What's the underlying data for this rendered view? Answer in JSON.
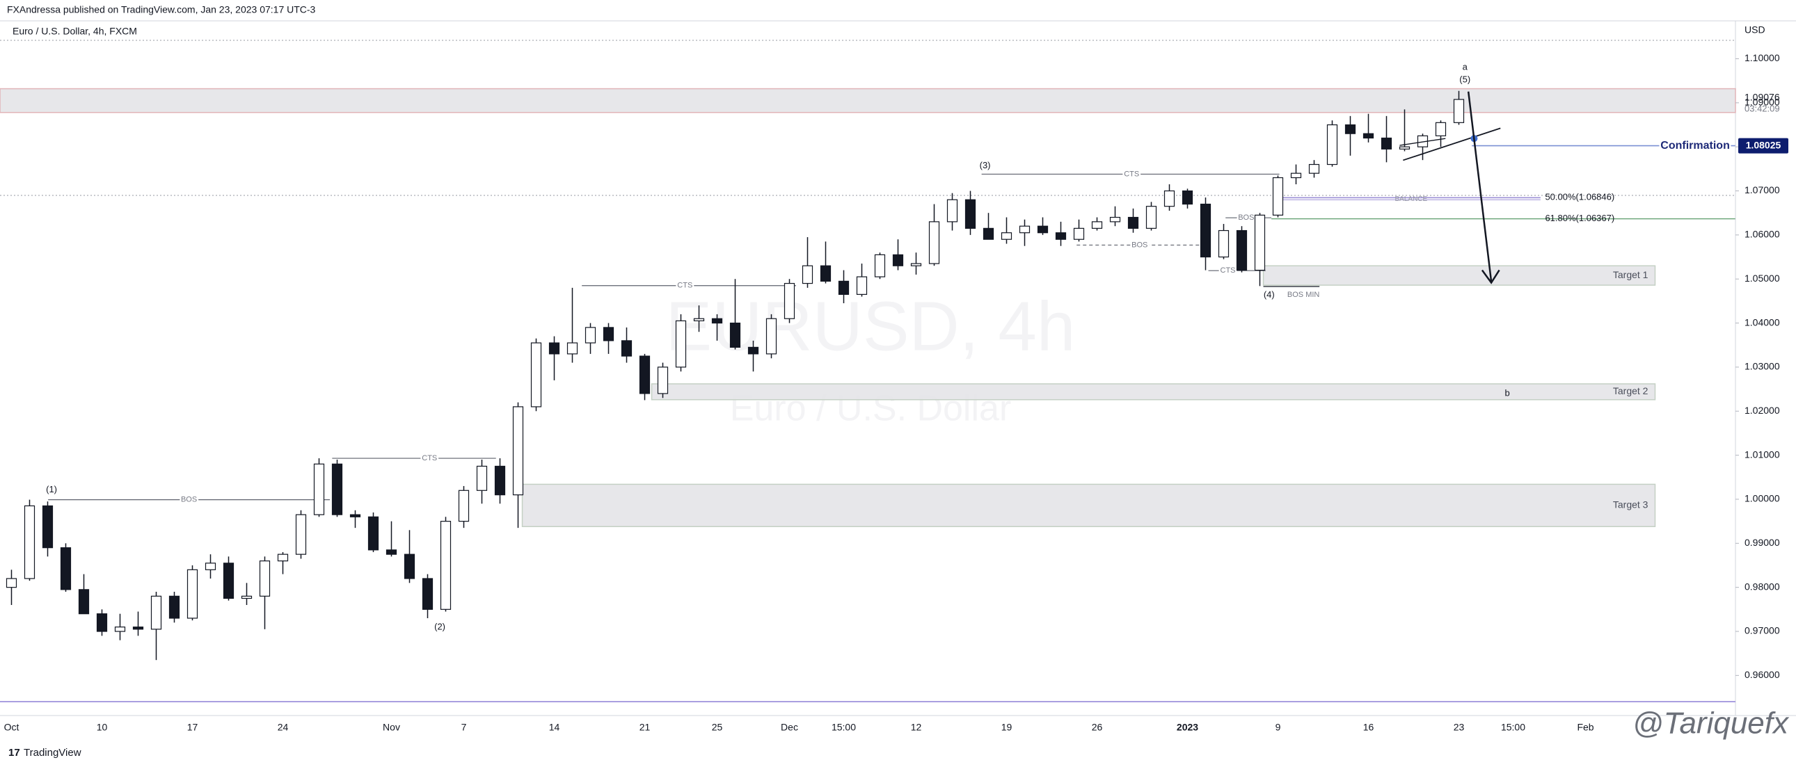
{
  "header": "FXAndressa published on TradingView.com, Jan 23, 2023 07:17 UTC-3",
  "footer": "TradingView",
  "signature": "@Tariquefx",
  "chart_data": {
    "type": "candlestick",
    "title": "Euro / U.S. Dollar, 4h, FXCM",
    "watermark": "EURUSD, 4h",
    "watermark_subtitle": "Euro / U.S. Dollar",
    "y_unit": "USD",
    "up_color": "#ffffff",
    "down_color": "#131722",
    "wick_color": "#131722",
    "categories": [
      "Oct",
      null,
      null,
      null,
      null,
      "10",
      null,
      null,
      null,
      null,
      "17",
      null,
      null,
      null,
      null,
      "24",
      null,
      null,
      null,
      null,
      null,
      "Nov",
      null,
      null,
      null,
      "7",
      null,
      null,
      null,
      null,
      "14",
      null,
      null,
      null,
      null,
      "21",
      null,
      null,
      null,
      "25",
      null,
      null,
      null,
      "Dec",
      null,
      null,
      "15:00",
      null,
      null,
      null,
      "12",
      null,
      null,
      null,
      null,
      "19",
      null,
      null,
      null,
      null,
      "26",
      null,
      null,
      null,
      null,
      "2023",
      null,
      null,
      null,
      null,
      "9",
      null,
      null,
      null,
      null,
      "16",
      null,
      null,
      null,
      null,
      "23",
      null,
      null,
      "15:00",
      null,
      null,
      null,
      "Feb",
      null,
      null,
      null,
      null,
      null,
      null,
      null,
      null
    ],
    "open": [
      0.98,
      0.982,
      0.9985,
      0.989,
      0.9795,
      0.974,
      0.97,
      0.971,
      0.9705,
      0.978,
      0.973,
      0.984,
      0.9855,
      0.9775,
      0.978,
      0.986,
      0.9875,
      0.9965,
      1.008,
      0.9965,
      0.996,
      0.9885,
      0.9875,
      0.982,
      0.975,
      0.995,
      1.002,
      1.0075,
      1.001,
      1.021,
      1.0355,
      1.033,
      1.0355,
      1.039,
      1.036,
      1.0325,
      1.024,
      1.03,
      1.0405,
      1.041,
      1.04,
      1.0345,
      1.033,
      1.041,
      1.049,
      1.053,
      1.0495,
      1.0465,
      1.0505,
      1.0555,
      1.053,
      1.0535,
      1.063,
      1.068,
      1.0615,
      1.059,
      1.0605,
      1.062,
      1.0605,
      1.059,
      1.0615,
      1.063,
      1.064,
      1.0615,
      1.0665,
      1.07,
      1.067,
      1.055,
      1.061,
      1.052,
      1.0645,
      1.073,
      1.074,
      1.076,
      1.085,
      1.083,
      1.082,
      1.0795,
      1.08,
      1.0825,
      1.0855,
      null,
      null,
      null,
      null,
      null,
      null,
      null,
      null,
      null,
      null,
      null,
      null,
      null,
      null,
      null
    ],
    "high": [
      0.984,
      0.9999,
      0.9995,
      0.99,
      0.983,
      0.975,
      0.974,
      0.9745,
      0.979,
      0.979,
      0.985,
      0.9875,
      0.987,
      0.981,
      0.987,
      0.988,
      0.9975,
      1.0093,
      1.009,
      0.9975,
      0.997,
      0.995,
      0.993,
      0.983,
      0.996,
      1.003,
      1.009,
      1.0093,
      1.022,
      1.0365,
      1.037,
      1.048,
      1.04,
      1.04,
      1.039,
      1.033,
      1.031,
      1.042,
      1.044,
      1.042,
      1.05,
      1.036,
      1.042,
      1.05,
      1.0595,
      1.0585,
      1.052,
      1.0535,
      1.056,
      1.059,
      1.056,
      1.067,
      1.0695,
      1.07,
      1.065,
      1.064,
      1.0635,
      1.064,
      1.063,
      1.0635,
      1.064,
      1.0665,
      1.066,
      1.0675,
      1.0715,
      1.0705,
      1.0685,
      1.0625,
      1.062,
      1.065,
      1.0735,
      1.076,
      1.077,
      1.086,
      1.087,
      1.0875,
      1.087,
      1.0885,
      1.083,
      1.086,
      1.0927,
      null,
      null,
      null,
      null,
      null,
      null,
      null,
      null,
      null,
      null,
      null,
      null,
      null,
      null,
      null
    ],
    "low": [
      0.976,
      0.9815,
      0.987,
      0.979,
      0.974,
      0.969,
      0.968,
      0.969,
      0.9635,
      0.972,
      0.9725,
      0.982,
      0.977,
      0.976,
      0.9705,
      0.983,
      0.9865,
      0.996,
      0.996,
      0.9935,
      0.988,
      0.987,
      0.981,
      0.973,
      0.9745,
      0.9935,
      0.999,
      0.999,
      0.9935,
      1.02,
      1.027,
      1.031,
      1.033,
      1.033,
      1.031,
      1.0225,
      1.023,
      1.029,
      1.038,
      1.036,
      1.034,
      1.029,
      1.032,
      1.04,
      1.048,
      1.049,
      1.0445,
      1.046,
      1.05,
      1.052,
      1.051,
      1.053,
      1.061,
      1.06,
      1.059,
      1.058,
      1.0575,
      1.06,
      1.0575,
      1.0585,
      1.061,
      1.062,
      1.0605,
      1.061,
      1.0655,
      1.066,
      1.052,
      1.0545,
      1.0515,
      1.0484,
      1.064,
      1.0715,
      1.073,
      1.0755,
      1.078,
      1.081,
      1.0765,
      1.079,
      1.077,
      1.08,
      1.085,
      null,
      null,
      null,
      null,
      null,
      null,
      null,
      null,
      null,
      null,
      null,
      null,
      null,
      null,
      null
    ],
    "close": [
      0.982,
      0.9985,
      0.989,
      0.9795,
      0.974,
      0.97,
      0.971,
      0.9705,
      0.978,
      0.973,
      0.984,
      0.9855,
      0.9775,
      0.978,
      0.986,
      0.9875,
      0.9965,
      1.008,
      0.9965,
      0.996,
      0.9885,
      0.9875,
      0.982,
      0.975,
      0.995,
      1.002,
      1.0075,
      1.001,
      1.021,
      1.0355,
      1.033,
      1.0355,
      1.039,
      1.036,
      1.0325,
      1.024,
      1.03,
      1.0405,
      1.041,
      1.04,
      1.0345,
      1.033,
      1.041,
      1.049,
      1.053,
      1.0495,
      1.0465,
      1.0505,
      1.0555,
      1.053,
      1.0535,
      1.063,
      1.068,
      1.0615,
      1.059,
      1.0605,
      1.062,
      1.0605,
      1.059,
      1.0615,
      1.063,
      1.064,
      1.0615,
      1.0665,
      1.07,
      1.067,
      1.055,
      1.061,
      1.052,
      1.0645,
      1.073,
      1.074,
      1.076,
      1.085,
      1.083,
      1.082,
      1.0795,
      1.08,
      1.0825,
      1.0855,
      1.09076,
      null,
      null,
      null,
      null,
      null,
      null,
      null,
      null,
      null,
      null,
      null,
      null,
      null,
      null,
      null
    ],
    "ylim": [
      0.9509,
      1.1086
    ],
    "yticks": [
      {
        "value": 0.96,
        "label": "0.96000"
      },
      {
        "value": 0.97,
        "label": "0.97000"
      },
      {
        "value": 0.98,
        "label": "0.98000"
      },
      {
        "value": 0.99,
        "label": "0.99000"
      },
      {
        "value": 1.0,
        "label": "1.00000"
      },
      {
        "value": 1.01,
        "label": "1.01000"
      },
      {
        "value": 1.02,
        "label": "1.02000"
      },
      {
        "value": 1.03,
        "label": "1.03000"
      },
      {
        "value": 1.04,
        "label": "1.04000"
      },
      {
        "value": 1.05,
        "label": "1.05000"
      },
      {
        "value": 1.06,
        "label": "1.06000"
      },
      {
        "value": 1.07,
        "label": "1.07000"
      },
      {
        "value": 1.08,
        "label": "1.08000"
      },
      {
        "value": 1.09,
        "label": "1.09000"
      },
      {
        "value": 1.1,
        "label": "1.10000"
      }
    ],
    "grid": false,
    "last_price": 1.09076,
    "countdown": "03:42:09",
    "zones": [
      {
        "range": [
          1.0878,
          1.0932
        ]
      },
      {
        "label": "Target 1",
        "range": [
          1.0486,
          1.053
        ]
      },
      {
        "label": "Target 2",
        "range": [
          1.0226,
          1.0262
        ]
      },
      {
        "label": "Target 3",
        "range": [
          0.9938,
          1.0034
        ]
      }
    ],
    "levels": [
      {
        "label": "BOS",
        "value": 0.9999
      },
      {
        "label": "CTS",
        "value": 1.0093
      },
      {
        "label": "CTS",
        "value": 1.0485
      },
      {
        "label": "CTS",
        "value": 1.0738
      },
      {
        "label": "BOS",
        "value": 1.0577
      },
      {
        "label": "BOS",
        "value": 1.0639
      },
      {
        "label": "CTS",
        "value": 1.0519
      },
      {
        "label": "BOS MIN",
        "value": 1.0483
      },
      {
        "label": "Confirmation",
        "value": 1.08025
      },
      {
        "label": "50.00%(1.06846)",
        "value": 1.06846
      },
      {
        "label": "61.80%(1.06367)",
        "value": 1.06367
      }
    ],
    "annotations": [
      "(1)",
      "(2)",
      "(3)",
      "(4)",
      "(5)",
      "a",
      "b",
      "BALANCE"
    ]
  }
}
